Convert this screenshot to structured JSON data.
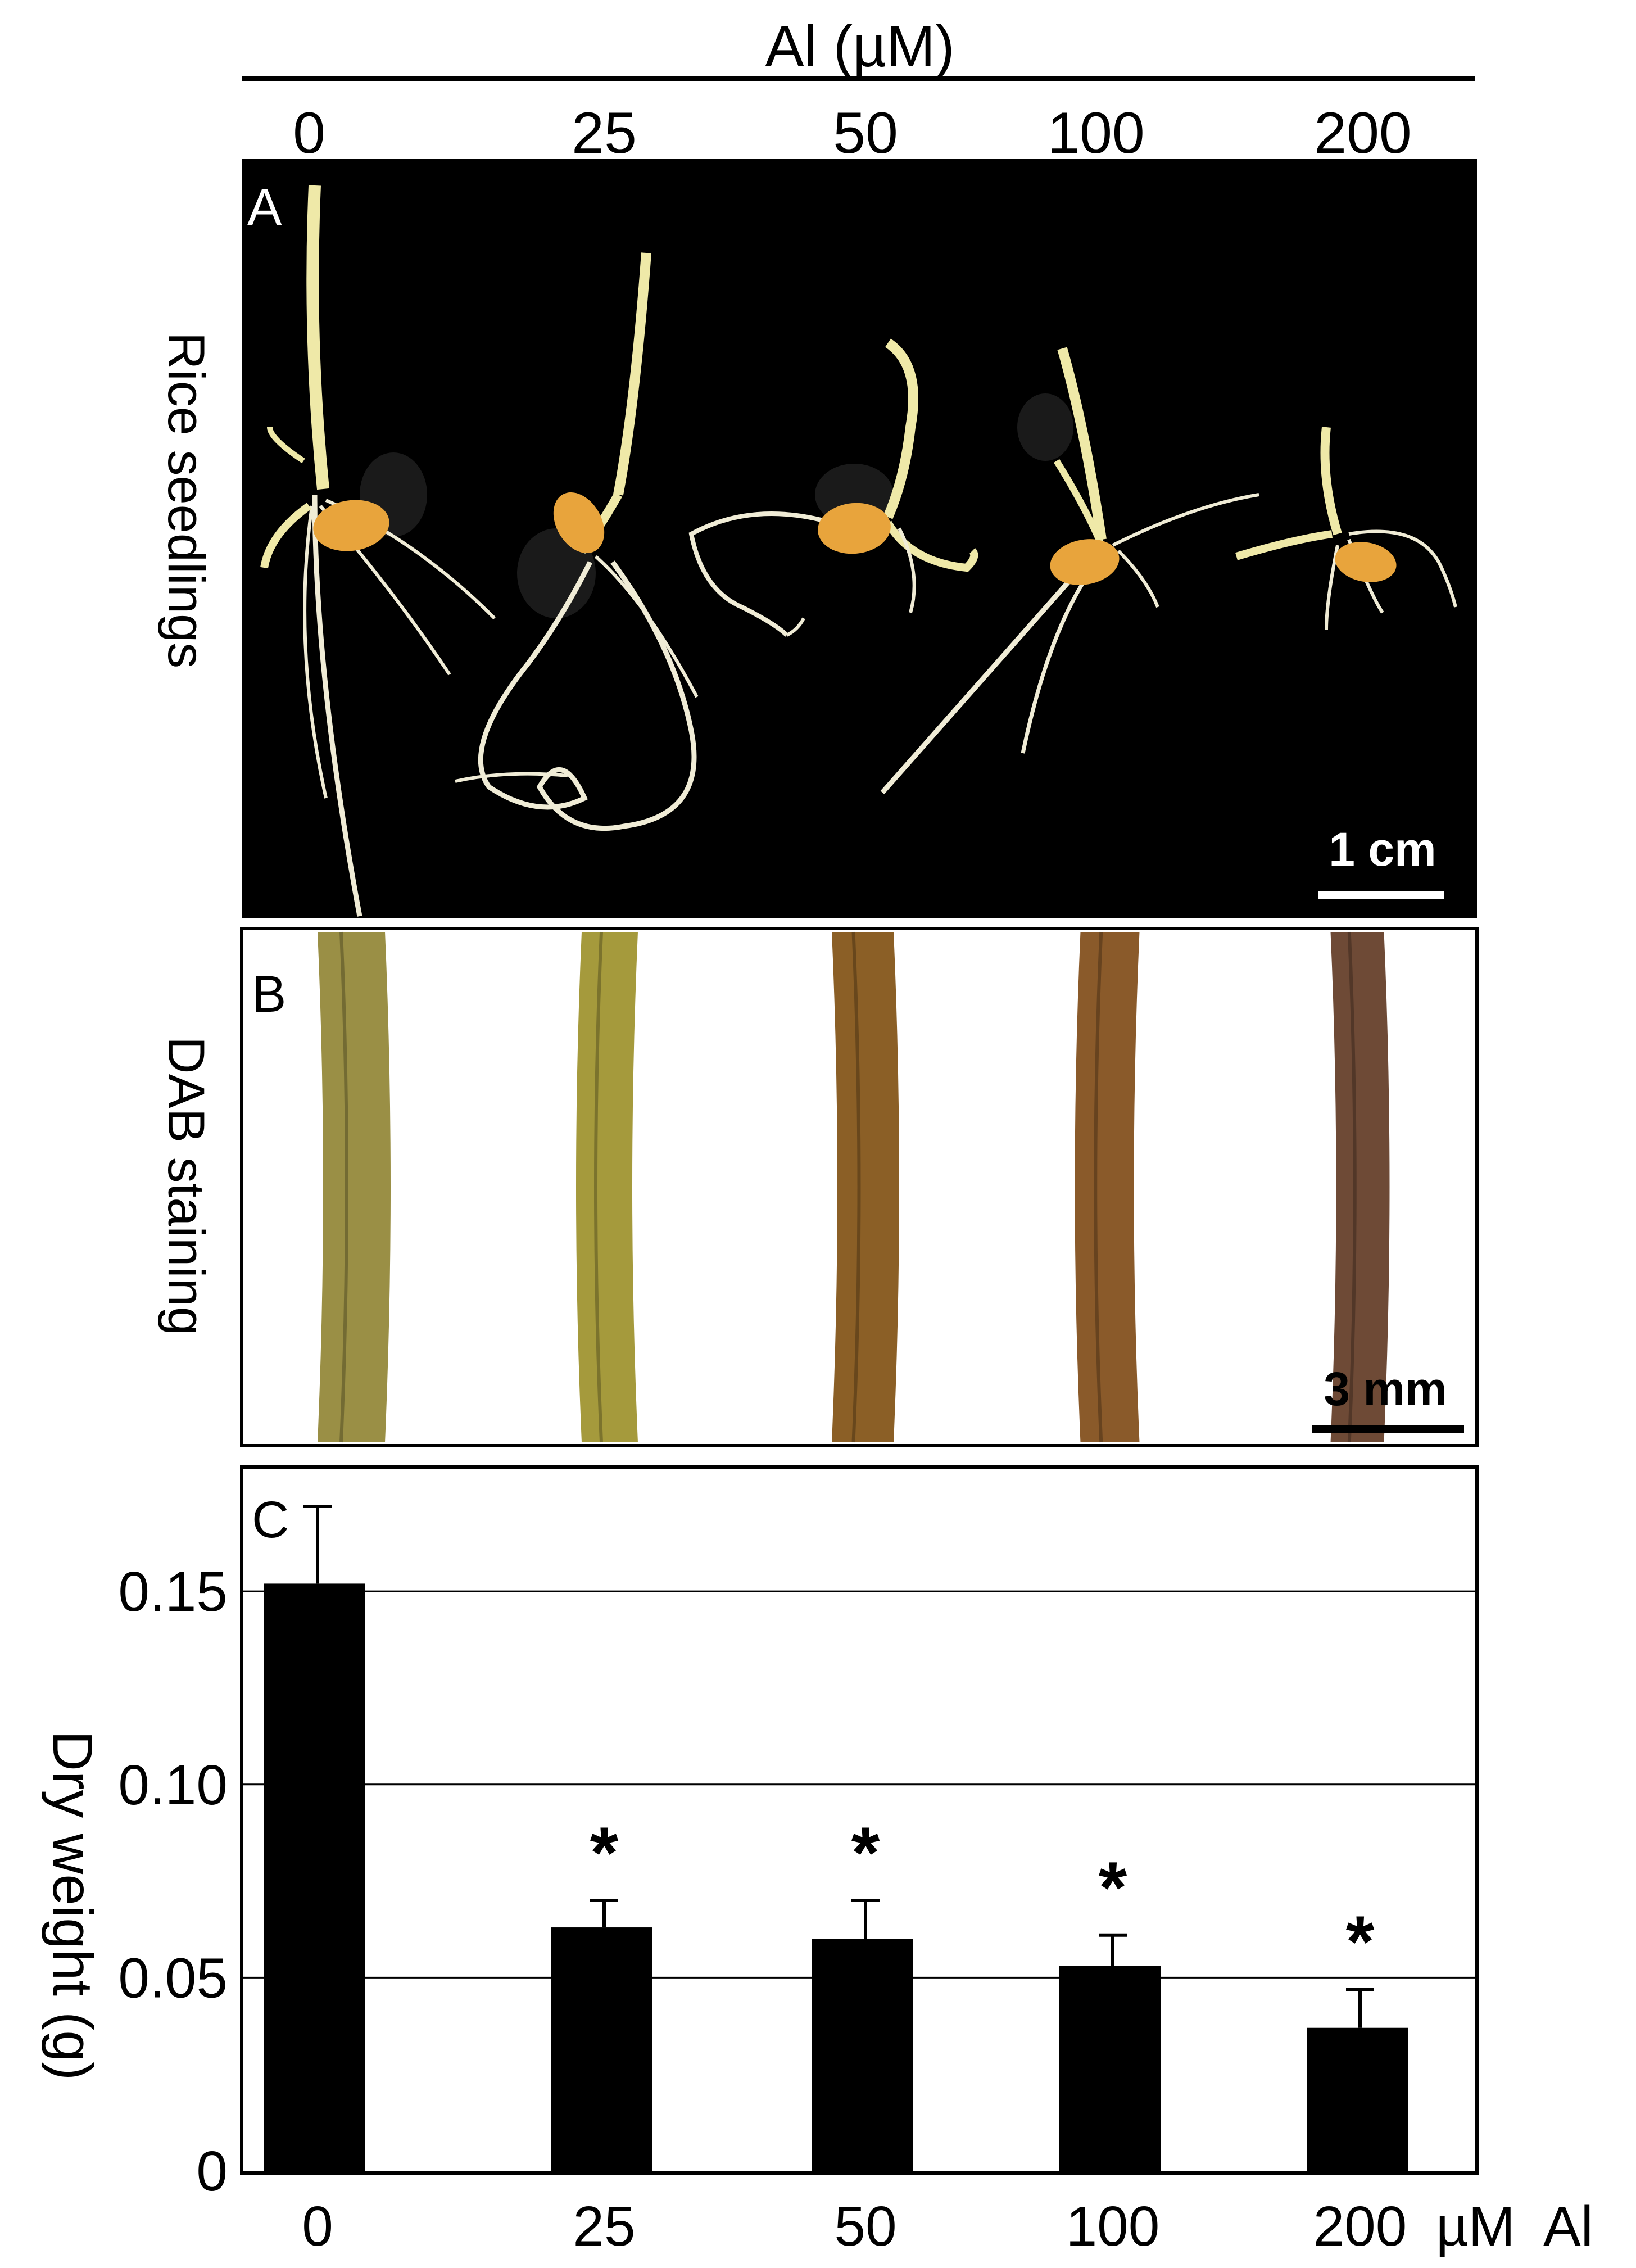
{
  "figure": {
    "top_header": "Al (µM)",
    "top_ticks": [
      "0",
      "25",
      "50",
      "100",
      "200"
    ]
  },
  "panel_a": {
    "letter": "A",
    "side_label": "Rice seedlings",
    "scale_label": "1 cm",
    "colors": {
      "background": "#000000",
      "seed": "#e8a43c",
      "shoot": "#efe9a8",
      "root": "#f0ecd6"
    }
  },
  "panel_b": {
    "letter": "B",
    "side_label": "DAB staining",
    "scale_label": "3 mm",
    "stain_colors": [
      "#9a8f45",
      "#a59a3c",
      "#8b5f26",
      "#8a5a2a",
      "#6e4a36"
    ]
  },
  "chart_data": {
    "type": "bar",
    "panel_letter": "C",
    "categories": [
      "0",
      "25",
      "50",
      "100",
      "200"
    ],
    "values": [
      0.152,
      0.063,
      0.06,
      0.053,
      0.037
    ],
    "errors": [
      0.02,
      0.007,
      0.01,
      0.008,
      0.01
    ],
    "significance": [
      "",
      "*",
      "*",
      "*",
      "*"
    ],
    "ylabel": "Dry weight (g)",
    "xlabel_unit": "µM  Al",
    "ylim": [
      0,
      0.18
    ],
    "yticks": [
      0,
      0.05,
      0.1,
      0.15
    ],
    "ytick_labels": [
      "0",
      "0.05",
      "0.10",
      "0.15"
    ],
    "grid": true,
    "bar_color": "#000000"
  }
}
